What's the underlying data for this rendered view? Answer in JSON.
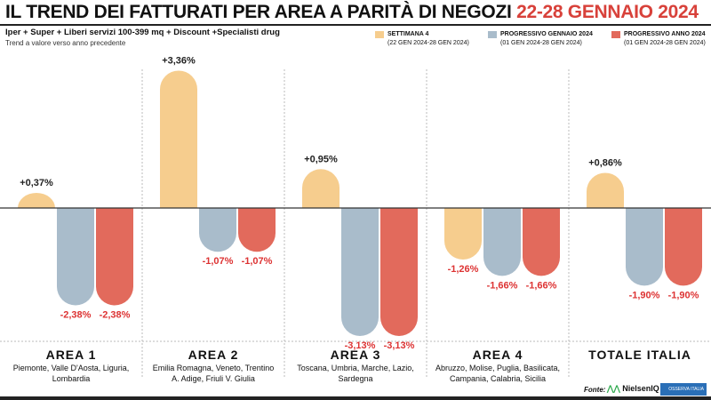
{
  "title": {
    "main": "IL TREND DEI FATTURATI PER AREA A PARITÀ DI NEGOZI",
    "highlight": "22-28 GENNAIO 2024"
  },
  "subtitle": "Iper + Super + Liberi servizi 100-399 mq + Discount +Specialisti drug",
  "note": "Trend a valore verso anno precedente",
  "legend": [
    {
      "label": "SETTIMANA 4",
      "period": "(22 GEN 2024-28 GEN 2024)",
      "color": "#f6cd8e"
    },
    {
      "label": "PROGRESSIVO GENNAIO 2024",
      "period": "(01 GEN 2024-28 GEN 2024)",
      "color": "#a9bccb"
    },
    {
      "label": "PROGRESSIVO ANNO 2024",
      "period": "(01 GEN 2024-28 GEN 2024)",
      "color": "#e26a5c"
    }
  ],
  "chart_data": {
    "type": "bar",
    "categories": [
      "AREA 1",
      "AREA 2",
      "AREA 3",
      "AREA 4",
      "TOTALE ITALIA"
    ],
    "category_details": [
      "Piemonte, Valle D'Aosta, Liguria, Lombardia",
      "Emilia Romagna, Veneto, Trentino A. Adige, Friuli V. Giulia",
      "Toscana, Umbria, Marche, Lazio, Sardegna",
      "Abruzzo, Molise, Puglia, Basilicata, Campania, Calabria, Sicilia",
      ""
    ],
    "series": [
      {
        "name": "Settimana 4",
        "values": [
          0.37,
          3.36,
          0.95,
          -1.26,
          0.86
        ],
        "labels": [
          "+0,37%",
          "+3,36%",
          "+0,95%",
          "-1,26%",
          "+0,86%"
        ]
      },
      {
        "name": "Progressivo gennaio 2024",
        "values": [
          -2.38,
          -1.07,
          -3.13,
          -1.66,
          -1.9
        ],
        "labels": [
          "-2,38%",
          "-1,07%",
          "-3,13%",
          "-1,66%",
          "-1,90%"
        ]
      },
      {
        "name": "Progressivo anno 2024",
        "values": [
          -2.38,
          -1.07,
          -3.13,
          -1.66,
          -1.9
        ],
        "labels": [
          "-2,38%",
          "-1,07%",
          "-3,13%",
          "-1,66%",
          "-1,90%"
        ]
      }
    ],
    "ylabel": "Trend a valore verso anno precedente (%)",
    "ylim": [
      -3.5,
      3.5
    ]
  },
  "source": {
    "label": "Fonte:",
    "brand1": "NielsenIQ",
    "brand2": "OSSERVA ITALIA"
  }
}
